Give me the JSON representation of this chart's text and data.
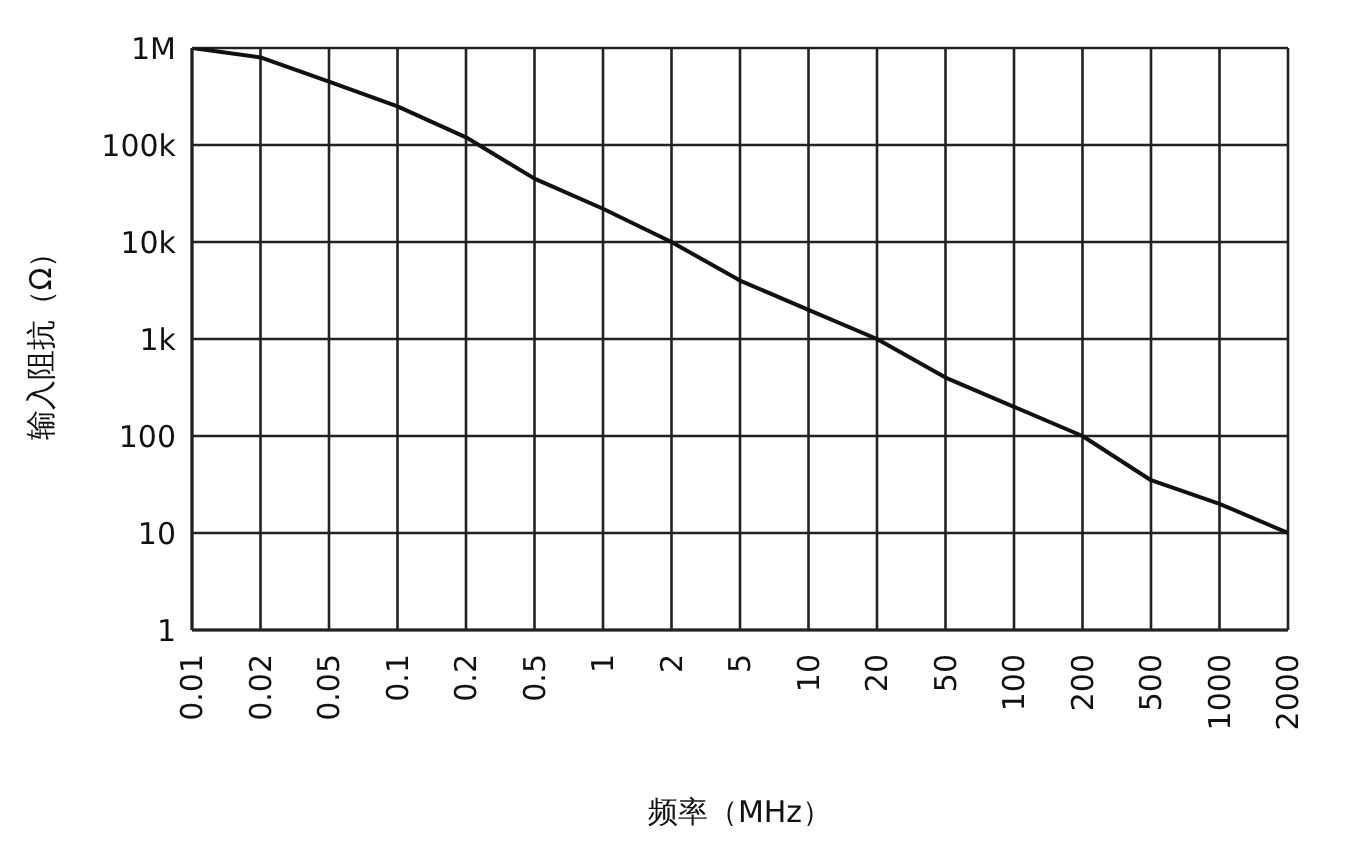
{
  "chart_data": {
    "type": "line",
    "xlabel": "频率（MHz）",
    "ylabel": "输入阻抗（Ω）",
    "categories": [
      "0.01",
      "0.02",
      "0.05",
      "0.1",
      "0.2",
      "0.5",
      "1",
      "2",
      "5",
      "10",
      "20",
      "50",
      "100",
      "200",
      "500",
      "1000",
      "2000"
    ],
    "series": [
      {
        "color": "#111111",
        "values": [
          1000000,
          800000,
          450000,
          250000,
          120000,
          45000,
          22000,
          10000,
          4000,
          2000,
          1000,
          400,
          200,
          100,
          35,
          20,
          10
        ]
      }
    ],
    "log": "y",
    "ylim": [
      1,
      1000000
    ],
    "yticks": [
      1,
      10,
      100,
      {
        "value": 1000,
        "label": "1k"
      },
      {
        "value": 10000,
        "label": "10k"
      },
      {
        "value": 100000,
        "label": "100k"
      },
      {
        "value": 1000000,
        "label": "1M"
      }
    ],
    "grid": true,
    "marker": "none",
    "line_style": "solid"
  }
}
